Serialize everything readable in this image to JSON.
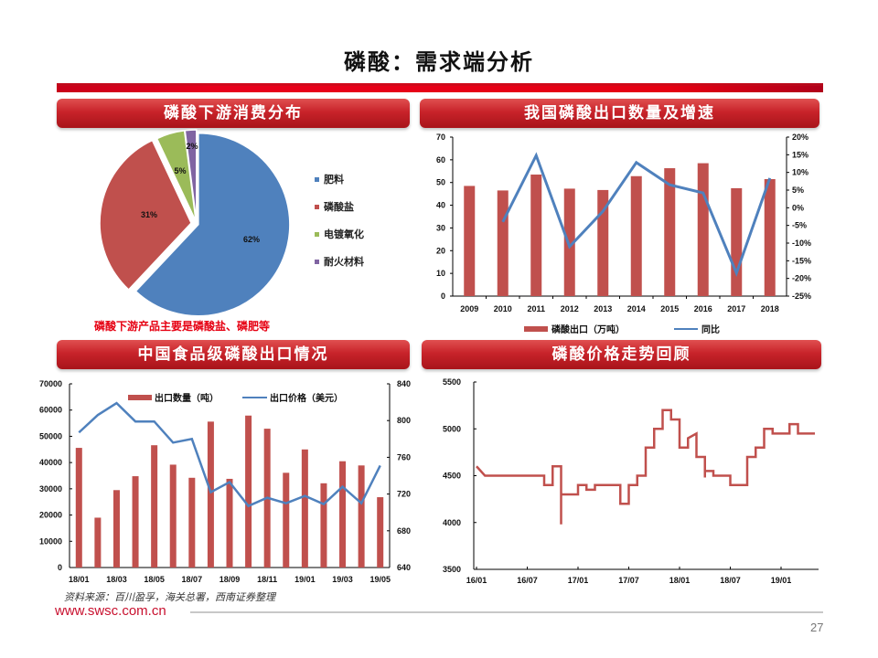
{
  "page": {
    "title": "磷酸：需求端分析",
    "source": "资料来源：百川盈孚，海关总署，西南证券整理",
    "url": "www.swsc.com.cn",
    "page_number": "27",
    "accent_color": "#c8232a"
  },
  "panels": {
    "pie_title": "磷酸下游消费分布",
    "export_title": "我国磷酸出口数量及增速",
    "food_title": "中国食品级磷酸出口情况",
    "price_title": "磷酸价格走势回顾",
    "pie_note": "磷酸下游产品主要是磷酸盐、磷肥等"
  },
  "chart_data": [
    {
      "type": "pie",
      "title": "磷酸下游消费分布",
      "categories": [
        "肥料",
        "磷酸盐",
        "电镀氧化",
        "耐火材料"
      ],
      "values": [
        62,
        31,
        5,
        2
      ],
      "labels": [
        "62%",
        "31%",
        "5%",
        "2%"
      ],
      "colors": [
        "#4f81bd",
        "#c0504d",
        "#9bbb59",
        "#8064a2"
      ],
      "legend_position": "right"
    },
    {
      "type": "bar+line",
      "title": "我国磷酸出口数量及增速",
      "categories": [
        "2009",
        "2010",
        "2011",
        "2012",
        "2013",
        "2014",
        "2015",
        "2016",
        "2017",
        "2018"
      ],
      "series": [
        {
          "name": "磷酸出口（万吨）",
          "type": "bar",
          "axis": "left",
          "color": "#c0504d",
          "values": [
            48.5,
            46.5,
            53.5,
            47.3,
            46.7,
            52.8,
            56.3,
            58.5,
            47.5,
            51.5
          ]
        },
        {
          "name": "同比",
          "type": "line",
          "axis": "right",
          "color": "#4f81bd",
          "values": [
            null,
            -4.0,
            14.8,
            -11.0,
            -1.0,
            12.8,
            6.5,
            4.2,
            -18.5,
            8.4
          ]
        }
      ],
      "ylim_left": [
        0,
        70
      ],
      "yticks_left": [
        "0",
        "10",
        "20",
        "30",
        "40",
        "50",
        "60",
        "70"
      ],
      "ylim_right": [
        -25,
        20
      ],
      "yticks_right": [
        "-25%",
        "-20%",
        "-15%",
        "-10%",
        "-5%",
        "0%",
        "5%",
        "10%",
        "15%",
        "20%"
      ],
      "legend_position": "bottom"
    },
    {
      "type": "bar+line",
      "title": "中国食品级磷酸出口情况",
      "categories": [
        "18/01",
        "18/02",
        "18/03",
        "18/04",
        "18/05",
        "18/06",
        "18/07",
        "18/08",
        "18/09",
        "18/10",
        "18/11",
        "18/12",
        "19/01",
        "19/02",
        "19/03",
        "19/04",
        "19/05"
      ],
      "xtick_labels": [
        "18/01",
        "18/03",
        "18/05",
        "18/07",
        "18/09",
        "18/11",
        "19/01",
        "19/03",
        "19/05"
      ],
      "series": [
        {
          "name": "出口数量（吨）",
          "type": "bar",
          "axis": "left",
          "color": "#c0504d",
          "values": [
            45600,
            19000,
            29500,
            34800,
            46600,
            39200,
            34200,
            55600,
            33800,
            57900,
            52900,
            36100,
            45000,
            32100,
            40500,
            38900,
            26800
          ]
        },
        {
          "name": "出口价格（美元）",
          "type": "line",
          "axis": "right",
          "color": "#4f81bd",
          "values": [
            787,
            806,
            819,
            799,
            799,
            776,
            780,
            722,
            733,
            707,
            716,
            710,
            718,
            709,
            728,
            710,
            751
          ]
        }
      ],
      "ylim_left": [
        0,
        70000
      ],
      "yticks_left": [
        "0",
        "10000",
        "20000",
        "30000",
        "40000",
        "50000",
        "60000",
        "70000"
      ],
      "ylim_right": [
        640,
        840
      ],
      "yticks_right": [
        "640",
        "680",
        "720",
        "760",
        "800",
        "840"
      ],
      "legend_position": "top"
    },
    {
      "type": "line",
      "title": "磷酸价格走势回顾",
      "xtick_labels": [
        "16/01",
        "16/07",
        "17/01",
        "17/07",
        "18/01",
        "18/07",
        "19/01"
      ],
      "series": [
        {
          "name": "磷酸价格",
          "color": "#c0504d",
          "points": [
            [
              "16/01",
              4600
            ],
            [
              "16/02",
              4500
            ],
            [
              "16/09",
              4500
            ],
            [
              "16/09",
              4400
            ],
            [
              "16/10",
              4400
            ],
            [
              "16/10",
              4600
            ],
            [
              "16/11",
              4600
            ],
            [
              "16/11",
              3980
            ],
            [
              "16/11",
              4300
            ],
            [
              "17/01",
              4300
            ],
            [
              "17/01",
              4400
            ],
            [
              "17/02",
              4400
            ],
            [
              "17/02",
              4350
            ],
            [
              "17/03",
              4350
            ],
            [
              "17/03",
              4400
            ],
            [
              "17/06",
              4400
            ],
            [
              "17/06",
              4200
            ],
            [
              "17/07",
              4200
            ],
            [
              "17/07",
              4400
            ],
            [
              "17/08",
              4400
            ],
            [
              "17/08",
              4500
            ],
            [
              "17/09",
              4500
            ],
            [
              "17/09",
              4800
            ],
            [
              "17/10",
              4800
            ],
            [
              "17/10",
              5000
            ],
            [
              "17/11",
              5000
            ],
            [
              "17/11",
              5200
            ],
            [
              "17/12",
              5200
            ],
            [
              "17/12",
              5100
            ],
            [
              "18/01",
              5100
            ],
            [
              "18/01",
              4800
            ],
            [
              "18/02",
              4800
            ],
            [
              "18/02",
              4900
            ],
            [
              "18/03",
              4950
            ],
            [
              "18/03",
              4700
            ],
            [
              "18/04",
              4700
            ],
            [
              "18/04",
              4600
            ],
            [
              "18/04",
              4480
            ],
            [
              "18/04",
              4550
            ],
            [
              "18/05",
              4550
            ],
            [
              "18/05",
              4500
            ],
            [
              "18/06",
              4500
            ],
            [
              "18/07",
              4500
            ],
            [
              "18/07",
              4400
            ],
            [
              "18/09",
              4400
            ],
            [
              "18/09",
              4700
            ],
            [
              "18/10",
              4700
            ],
            [
              "18/10",
              4800
            ],
            [
              "18/11",
              4800
            ],
            [
              "18/11",
              5000
            ],
            [
              "18/12",
              5000
            ],
            [
              "18/12",
              4950
            ],
            [
              "19/02",
              4950
            ],
            [
              "19/02",
              5050
            ],
            [
              "19/03",
              5050
            ],
            [
              "19/03",
              4950
            ],
            [
              "19/05",
              4950
            ]
          ]
        }
      ],
      "ylim": [
        3500,
        5500
      ],
      "yticks": [
        "3500",
        "4000",
        "4500",
        "5000",
        "5500"
      ]
    }
  ]
}
